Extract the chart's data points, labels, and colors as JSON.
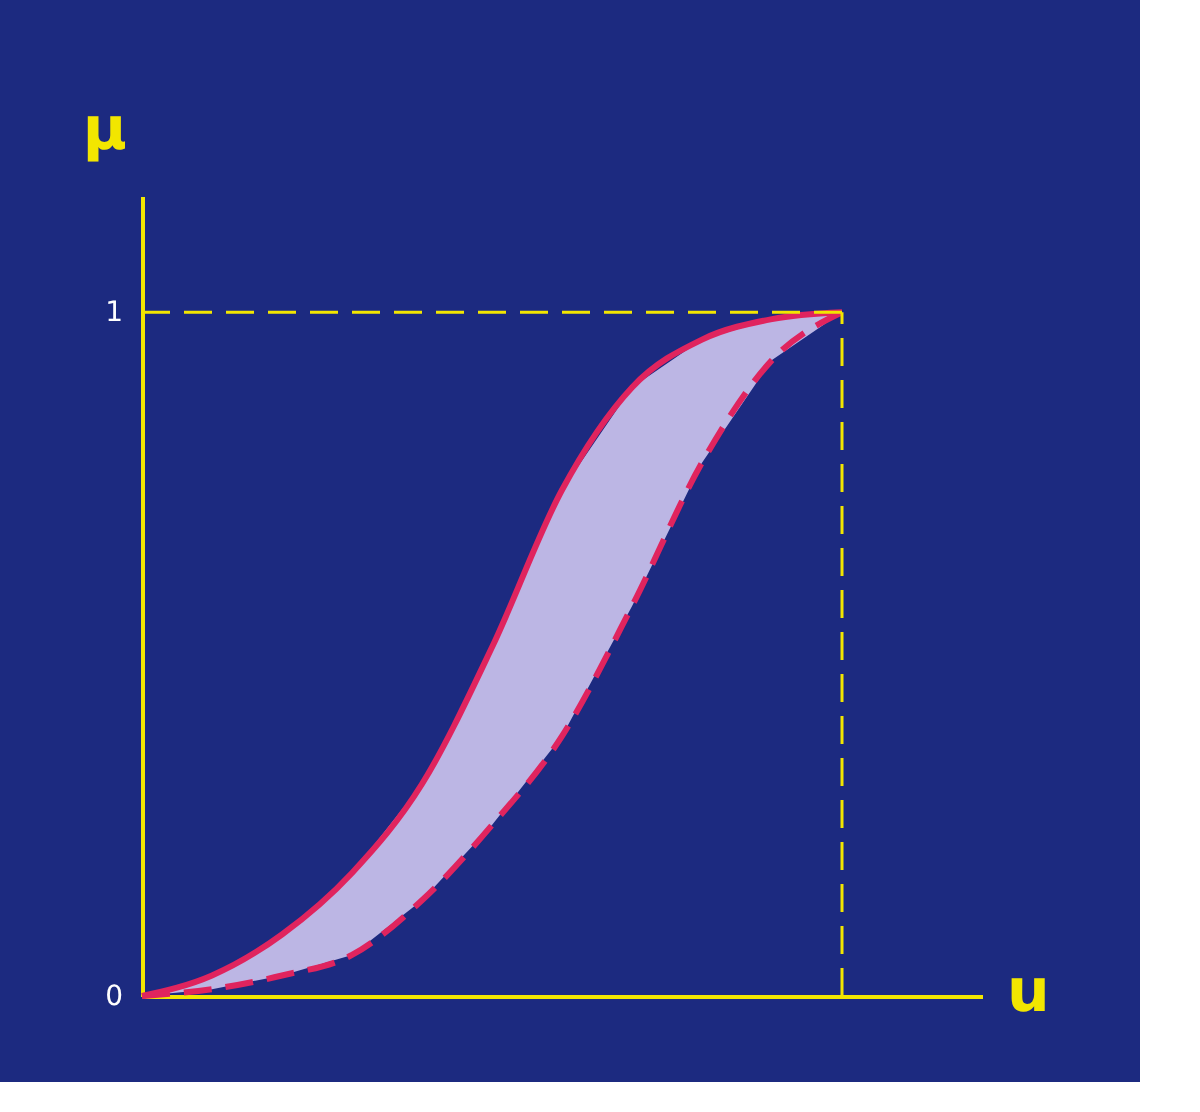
{
  "chart_data": {
    "type": "line",
    "xlabel": "u",
    "ylabel": "μ",
    "categories": [
      null,
      null,
      null,
      null,
      null,
      null,
      null,
      null,
      null,
      null,
      null
    ],
    "series": [
      {
        "color": "#e0245e",
        "line_style": "solid",
        "values": [
          0,
          0.03,
          0.09,
          0.18,
          0.31,
          0.51,
          0.74,
          0.89,
          0.96,
          0.99,
          1
        ]
      },
      {
        "color": "#e0245e",
        "line_style": "dashed",
        "values": [
          0,
          0.01,
          0.03,
          0.06,
          0.14,
          0.25,
          0.38,
          0.57,
          0.78,
          0.93,
          1
        ]
      }
    ],
    "ylim": [
      0,
      1.17
    ],
    "yticks": [
      0,
      1
    ],
    "grid": false,
    "tick_labels": "y",
    "ref_lines": [
      {
        "axis": "y",
        "value": 1,
        "color": "#f2e600",
        "line_style": "dashed"
      }
    ]
  }
}
